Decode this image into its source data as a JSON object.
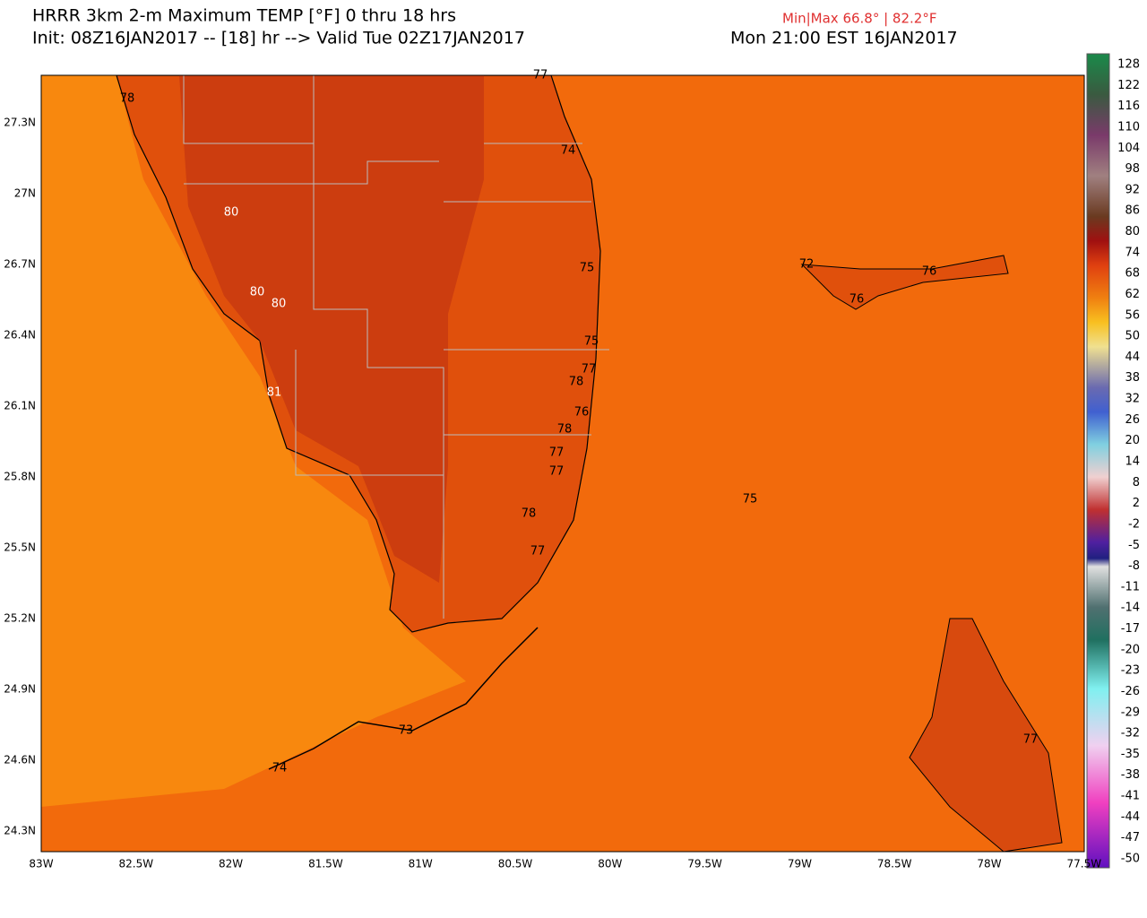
{
  "header": {
    "title": "HRRR 3km 2-m Maximum TEMP [°F] 0 thru 18 hrs",
    "init": "Init: 08Z16JAN2017 -- [18] hr --> Valid Tue 02Z17JAN2017",
    "local_time": "Mon 21:00 EST 16JAN2017",
    "minmax": "Min|Max 66.8° | 82.2°F"
  },
  "lat_labels": [
    "27.3N",
    "27N",
    "26.7N",
    "26.4N",
    "26.1N",
    "25.8N",
    "25.5N",
    "25.2N",
    "24.9N",
    "24.6N",
    "24.3N"
  ],
  "lon_labels": [
    "83W",
    "82.5W",
    "82W",
    "81.5W",
    "81W",
    "80.5W",
    "80W",
    "79.5W",
    "79W",
    "78.5W",
    "78W",
    "77.5W"
  ],
  "colorbar_labels": [
    128,
    122,
    116,
    110,
    104,
    98,
    92,
    86,
    80,
    74,
    68,
    62,
    56,
    50,
    44,
    38,
    32,
    26,
    20,
    14,
    8,
    2,
    -2,
    -5,
    -8,
    -11,
    -14,
    -17,
    -20,
    -23,
    -26,
    -29,
    -32,
    -35,
    -38,
    -41,
    -44,
    -47,
    -50
  ],
  "point_labels": [
    77,
    78,
    74,
    80,
    75,
    72,
    76,
    80,
    80,
    76,
    75,
    77,
    78,
    81,
    76,
    78,
    77,
    77,
    75,
    78,
    77,
    73,
    74,
    77
  ]
}
